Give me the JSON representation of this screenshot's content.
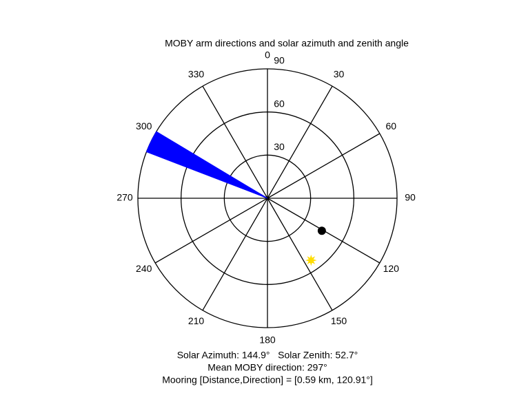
{
  "chart_data": {
    "type": "polar",
    "title": "MOBY arm directions and solar azimuth and zenith angle",
    "theta_ticks": [
      0,
      30,
      60,
      90,
      120,
      150,
      180,
      210,
      240,
      270,
      300,
      330
    ],
    "r_lim": [
      0,
      90
    ],
    "r_ticks": [
      30,
      60,
      90
    ],
    "wedges": [
      {
        "theta": [
          291,
          301
        ],
        "r": 90,
        "color": "#0000ff"
      }
    ],
    "points": [
      {
        "theta": 120.91,
        "r": 44,
        "color": "#000000",
        "marker": "circle"
      },
      {
        "theta": 144.9,
        "r": 52.7,
        "color": "#ffdd00",
        "marker": "star"
      }
    ],
    "footer": [
      "Solar Azimuth: 144.9°   Solar Zenith: 52.7°",
      "Mean MOBY direction: 297°",
      "Mooring [Distance,Direction] = [0.59 km, 120.91°]"
    ]
  }
}
